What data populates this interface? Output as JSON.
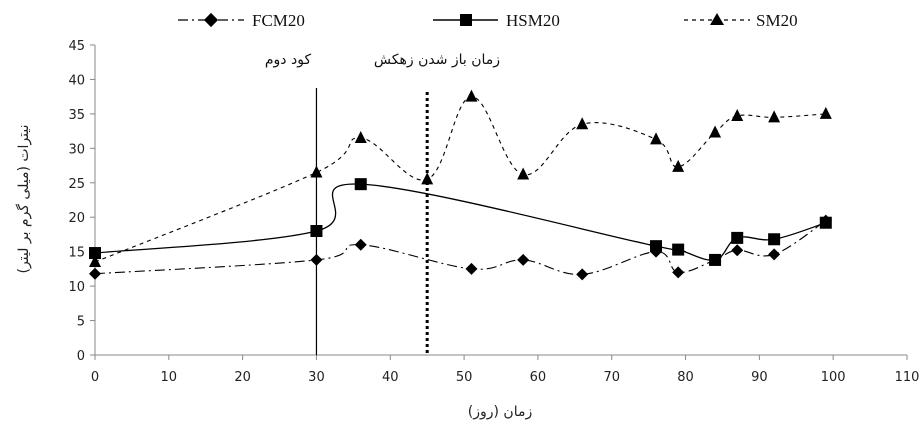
{
  "chart_data": {
    "type": "line",
    "xlabel": "زمان (روز)",
    "ylabel": "نیترات (میلی گرم بر لیتر)",
    "xlim": [
      0,
      110
    ],
    "ylim": [
      0,
      45
    ],
    "xticks": [
      0,
      10,
      20,
      30,
      40,
      50,
      60,
      70,
      80,
      90,
      100,
      110
    ],
    "yticks": [
      0,
      5,
      10,
      15,
      20,
      25,
      30,
      35,
      40,
      45
    ],
    "grid": false,
    "legend_position": "top",
    "series": [
      {
        "name": "FCM20",
        "marker": "diamond",
        "line_style": "dash-dot",
        "color": "#000000",
        "x": [
          0,
          30,
          36,
          51,
          58,
          66,
          76,
          79,
          84,
          87,
          92,
          99
        ],
        "y": [
          11.8,
          13.8,
          16,
          12.5,
          13.8,
          11.7,
          15,
          12,
          13.8,
          15.2,
          14.6,
          19.5
        ]
      },
      {
        "name": "HSM20",
        "marker": "square",
        "line_style": "solid",
        "color": "#000000",
        "x": [
          0,
          30,
          36,
          76,
          79,
          84,
          87,
          92,
          99
        ],
        "y": [
          14.8,
          18,
          24.8,
          15.8,
          15.3,
          13.8,
          17,
          16.8,
          19.2
        ]
      },
      {
        "name": "SM20",
        "marker": "triangle",
        "line_style": "dashed",
        "color": "#000000",
        "x": [
          0,
          30,
          36,
          45,
          51,
          58,
          66,
          76,
          79,
          84,
          87,
          92,
          99
        ],
        "y": [
          13.5,
          26.5,
          31.5,
          25.5,
          37.5,
          26.2,
          33.5,
          31.3,
          27.3,
          32.3,
          34.7,
          34.5,
          35
        ]
      }
    ],
    "annotations": [
      {
        "text": "کود دوم",
        "x": 30,
        "line_style": "solid"
      },
      {
        "text": "زمان باز شدن زهکش",
        "x": 45,
        "line_style": "dotted"
      }
    ]
  }
}
